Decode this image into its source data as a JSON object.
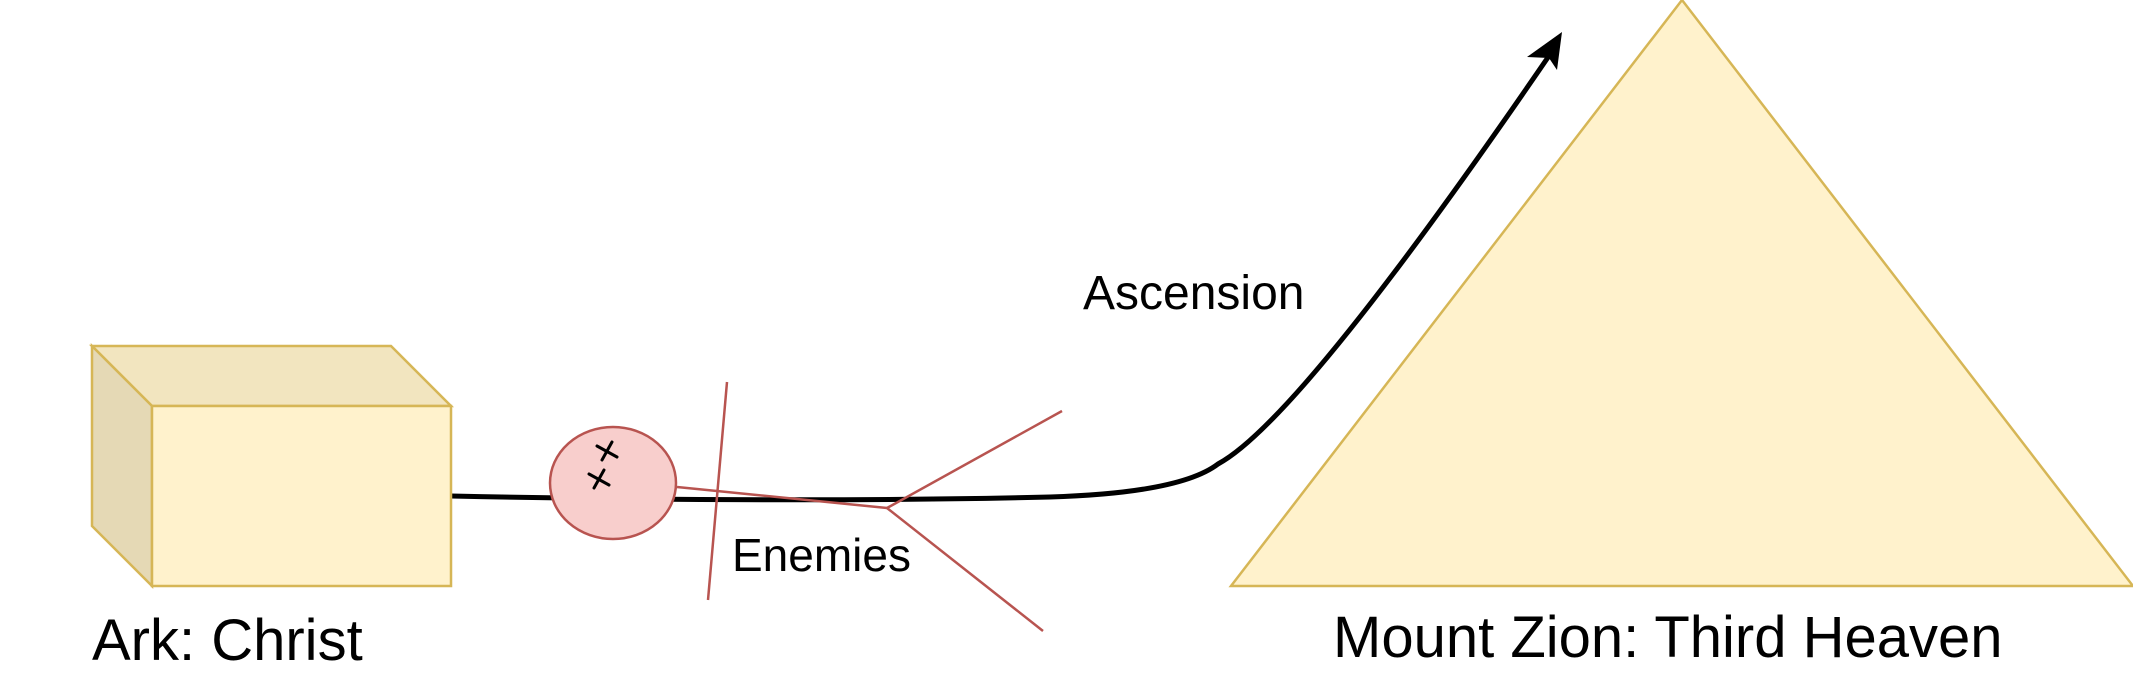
{
  "labels": {
    "ark": "Ark: Christ",
    "mount_zion": "Mount Zion: Third Heaven",
    "ascension": "Ascension",
    "enemies": "Enemies"
  },
  "icons": {
    "ark": "cube-icon",
    "mount_zion": "triangle-icon",
    "enemies": "circle-with-crosses-icon",
    "ascension": "arrow-icon"
  },
  "colors": {
    "ark_front": "#fff2cc",
    "ark_top": "#f2e5bf",
    "ark_side": "#e5d9b5",
    "ark_stroke": "#d6b656",
    "mountain_fill": "#fff2cc",
    "mountain_stroke": "#d6b656",
    "enemy_fill": "#f8cecc",
    "enemy_stroke": "#b85450",
    "path": "#000000"
  }
}
